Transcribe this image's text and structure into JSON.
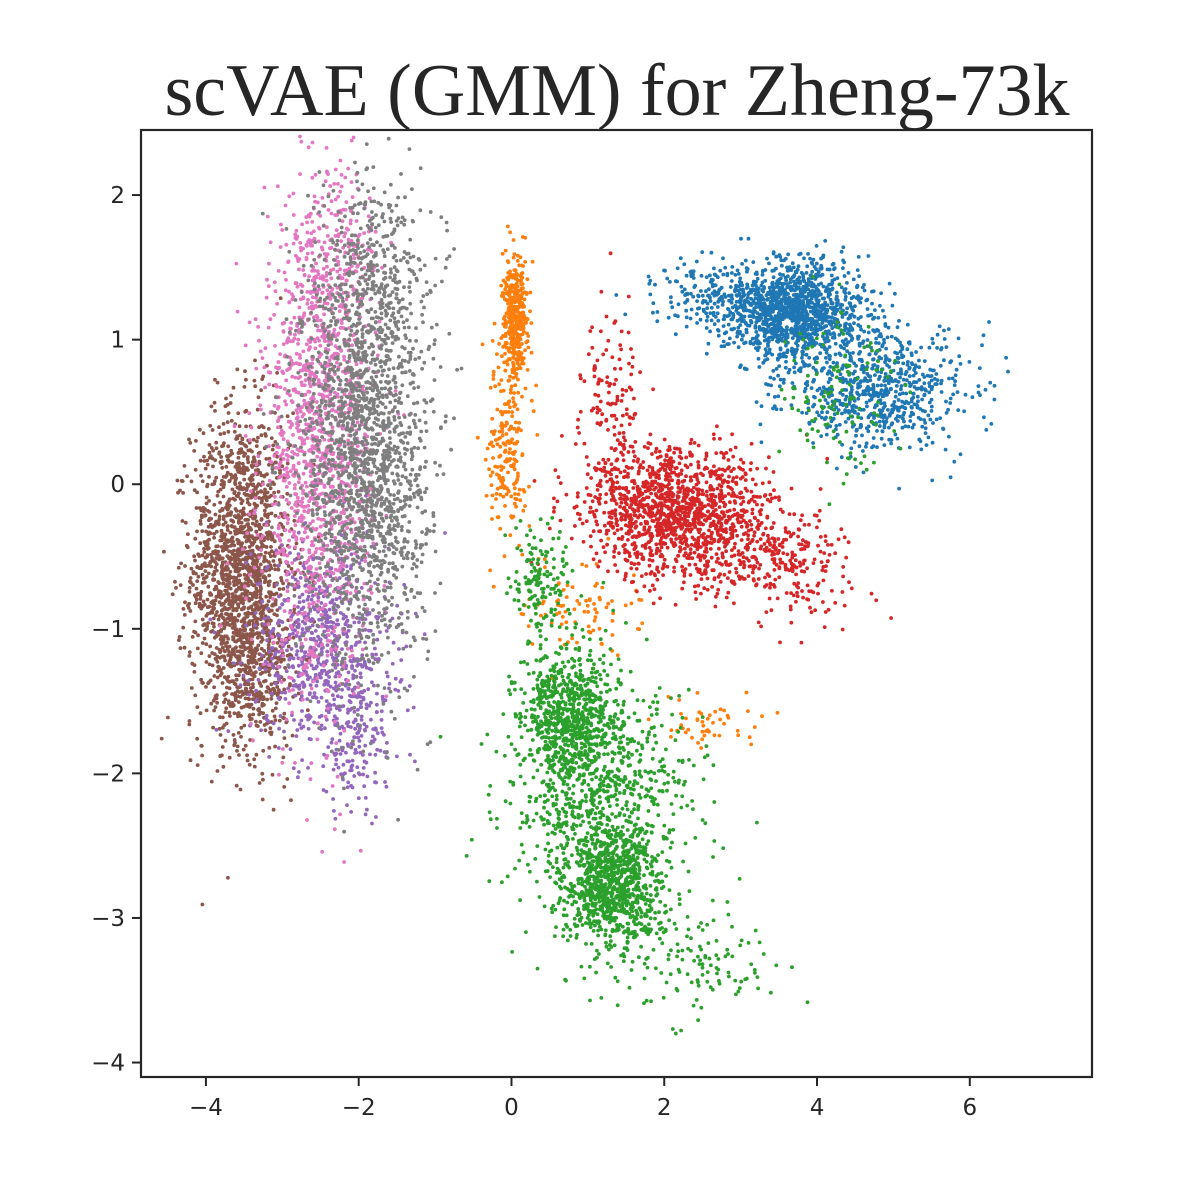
{
  "chart_data": {
    "type": "scatter",
    "title": "scVAE (GMM) for Zheng-73k",
    "xlabel": "",
    "ylabel": "",
    "xlim": [
      -4.85,
      7.6
    ],
    "ylim": [
      -4.1,
      2.45
    ],
    "xticks": [
      -4,
      -2,
      0,
      2,
      4,
      6
    ],
    "yticks": [
      -4,
      -3,
      -2,
      -1,
      0,
      1,
      2
    ],
    "xtick_labels": [
      "−4",
      "−2",
      "0",
      "2",
      "4",
      "6"
    ],
    "ytick_labels": [
      "−4",
      "−3",
      "−2",
      "−1",
      "0",
      "1",
      "2"
    ],
    "grid": false,
    "legend": "none",
    "series": [
      {
        "color": "#8c564b",
        "clusters": [
          {
            "cx": -3.55,
            "cy": -0.6,
            "sx": 0.32,
            "sy": 0.55,
            "n": 1700
          },
          {
            "cx": -3.3,
            "cy": -1.3,
            "sx": 0.25,
            "sy": 0.3,
            "n": 250
          }
        ]
      },
      {
        "color": "#9467bd",
        "clusters": [
          {
            "cx": -2.5,
            "cy": -1.1,
            "sx": 0.45,
            "sy": 0.35,
            "n": 650
          },
          {
            "cx": -2.0,
            "cy": -1.7,
            "sx": 0.3,
            "sy": 0.3,
            "n": 180
          }
        ]
      },
      {
        "color": "#e377c2",
        "clusters": [
          {
            "cx": -2.55,
            "cy": 0.2,
            "sx": 0.35,
            "sy": 0.8,
            "n": 1300
          },
          {
            "cx": -2.3,
            "cy": 1.5,
            "sx": 0.3,
            "sy": 0.35,
            "n": 220
          }
        ]
      },
      {
        "color": "#7f7f7f",
        "clusters": [
          {
            "cx": -1.9,
            "cy": 0.25,
            "sx": 0.42,
            "sy": 0.75,
            "n": 1900
          },
          {
            "cx": -1.8,
            "cy": 1.6,
            "sx": 0.3,
            "sy": 0.3,
            "n": 200
          }
        ]
      },
      {
        "color": "#ff7f0e",
        "clusters": [
          {
            "cx": 0.05,
            "cy": 1.15,
            "sx": 0.08,
            "sy": 0.2,
            "n": 380
          },
          {
            "cx": -0.05,
            "cy": 0.3,
            "sx": 0.12,
            "sy": 0.35,
            "n": 200
          },
          {
            "cx": 0.9,
            "cy": -0.85,
            "sx": 0.4,
            "sy": 0.15,
            "n": 90
          },
          {
            "cx": 2.6,
            "cy": -1.65,
            "sx": 0.35,
            "sy": 0.08,
            "n": 50
          }
        ]
      },
      {
        "color": "#d62728",
        "clusters": [
          {
            "cx": 2.2,
            "cy": -0.2,
            "sx": 0.6,
            "sy": 0.22,
            "n": 1300
          },
          {
            "cx": 3.4,
            "cy": -0.5,
            "sx": 0.5,
            "sy": 0.15,
            "n": 250
          },
          {
            "cx": 1.3,
            "cy": 0.5,
            "sx": 0.2,
            "sy": 0.35,
            "n": 160
          },
          {
            "cx": 4.0,
            "cy": -0.8,
            "sx": 0.4,
            "sy": 0.15,
            "n": 40
          }
        ]
      },
      {
        "color": "#1f77b4",
        "clusters": [
          {
            "cx": 3.7,
            "cy": 1.2,
            "sx": 0.45,
            "sy": 0.17,
            "n": 1300
          },
          {
            "cx": 4.8,
            "cy": 0.65,
            "sx": 0.6,
            "sy": 0.2,
            "n": 700
          },
          {
            "cx": 2.6,
            "cy": 1.3,
            "sx": 0.35,
            "sy": 0.12,
            "n": 150
          }
        ]
      },
      {
        "color": "#2ca02c",
        "clusters": [
          {
            "cx": 0.75,
            "cy": -1.6,
            "sx": 0.3,
            "sy": 0.22,
            "n": 700
          },
          {
            "cx": 1.3,
            "cy": -2.8,
            "sx": 0.32,
            "sy": 0.22,
            "n": 800
          },
          {
            "cx": 1.2,
            "cy": -2.2,
            "sx": 0.6,
            "sy": 0.45,
            "n": 900
          },
          {
            "cx": 0.4,
            "cy": -0.7,
            "sx": 0.2,
            "sy": 0.2,
            "n": 150
          },
          {
            "cx": 2.5,
            "cy": -3.3,
            "sx": 0.5,
            "sy": 0.2,
            "n": 120
          },
          {
            "cx": 4.3,
            "cy": 0.7,
            "sx": 0.4,
            "sy": 0.3,
            "n": 120
          }
        ]
      }
    ]
  }
}
